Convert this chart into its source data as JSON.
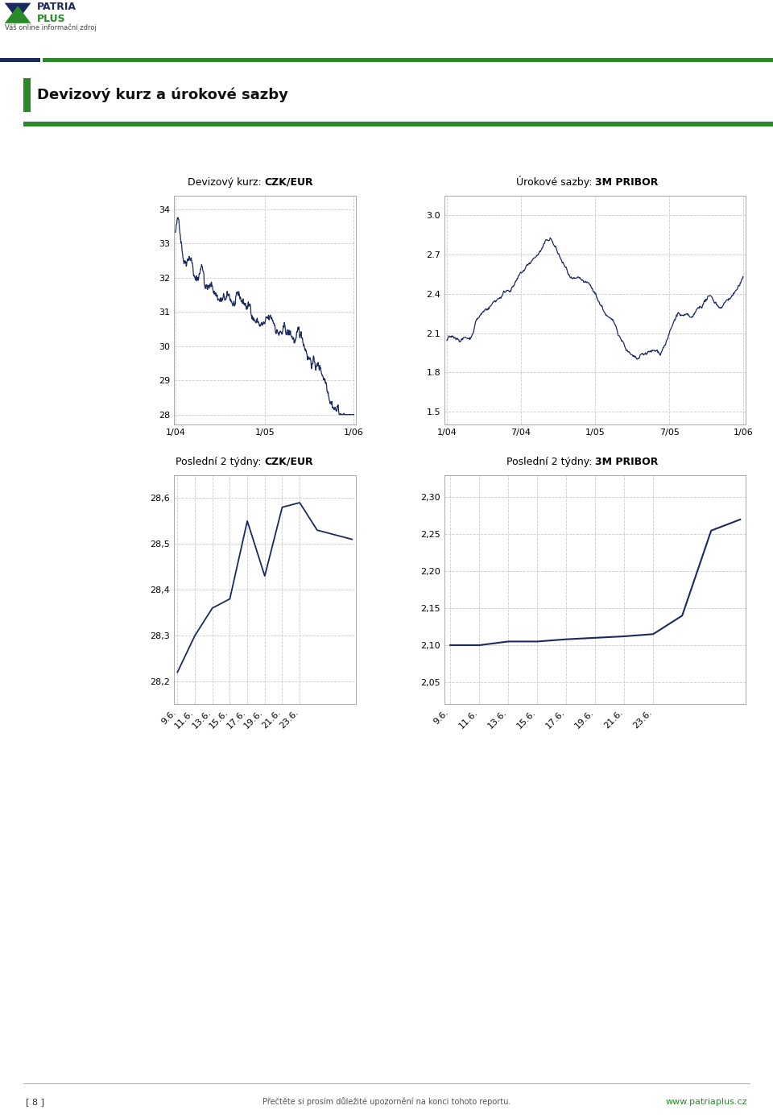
{
  "page_bg": "#ffffff",
  "header_bar_dark": "#1a2a5e",
  "header_bar_green": "#2a8a2a",
  "section_title": "Devizový kurz a úrokové sazby",
  "chart_line_color": "#1a2a5e",
  "chart_bg": "#ffffff",
  "chart_grid_color": "#cccccc",
  "chart_border_color": "#aaaaaa",
  "chart1_title_plain": "Devizový kurz: ",
  "chart1_title_bold": "CZK/EUR",
  "chart1_yticks": [
    28,
    29,
    30,
    31,
    32,
    33,
    34
  ],
  "chart1_xticks": [
    "1/04",
    "1/05",
    "1/06"
  ],
  "chart1_ylim": [
    27.7,
    34.4
  ],
  "chart2_title_plain": "Úrokové sazby: ",
  "chart2_title_bold": "3M PRIBOR",
  "chart2_yticks": [
    1.5,
    1.8,
    2.1,
    2.4,
    2.7,
    3.0
  ],
  "chart2_xticks": [
    "1/04",
    "7/04",
    "1/05",
    "7/05",
    "1/06"
  ],
  "chart2_ylim": [
    1.4,
    3.15
  ],
  "chart3_title_plain": "Poslední 2 týdny: ",
  "chart3_title_bold": "CZK/EUR",
  "chart3_yticks": [
    28.2,
    28.3,
    28.4,
    28.5,
    28.6
  ],
  "chart3_xtick_labels": [
    "9.6.",
    "11.6.",
    "13.6.",
    "15.6.",
    "17.6.",
    "19.6.",
    "21.6.",
    "23.6."
  ],
  "chart3_ylim": [
    28.15,
    28.65
  ],
  "chart4_title_plain": "Poslední 2 týdny: ",
  "chart4_title_bold": "3M PRIBOR",
  "chart4_yticks": [
    2.05,
    2.1,
    2.15,
    2.2,
    2.25,
    2.3
  ],
  "chart4_xtick_labels": [
    "9.6.",
    "11.6.",
    "13.6.",
    "15.6.",
    "17.6.",
    "19.6.",
    "21.6.",
    "23.6."
  ],
  "chart4_ylim": [
    2.02,
    2.33
  ],
  "footer_text": "Přečtěte si prosím důležité upozornění na konci tohoto reportu.",
  "footer_right": "www.patriaplus.cz",
  "page_num": "[ 8 ]",
  "czk_2w_y": [
    28.22,
    28.3,
    28.36,
    28.38,
    28.55,
    28.43,
    28.58,
    28.59,
    28.53,
    28.52,
    28.51
  ],
  "pribor_2w_y": [
    2.1,
    2.1,
    2.105,
    2.105,
    2.108,
    2.11,
    2.112,
    2.115,
    2.14,
    2.255,
    2.27
  ]
}
